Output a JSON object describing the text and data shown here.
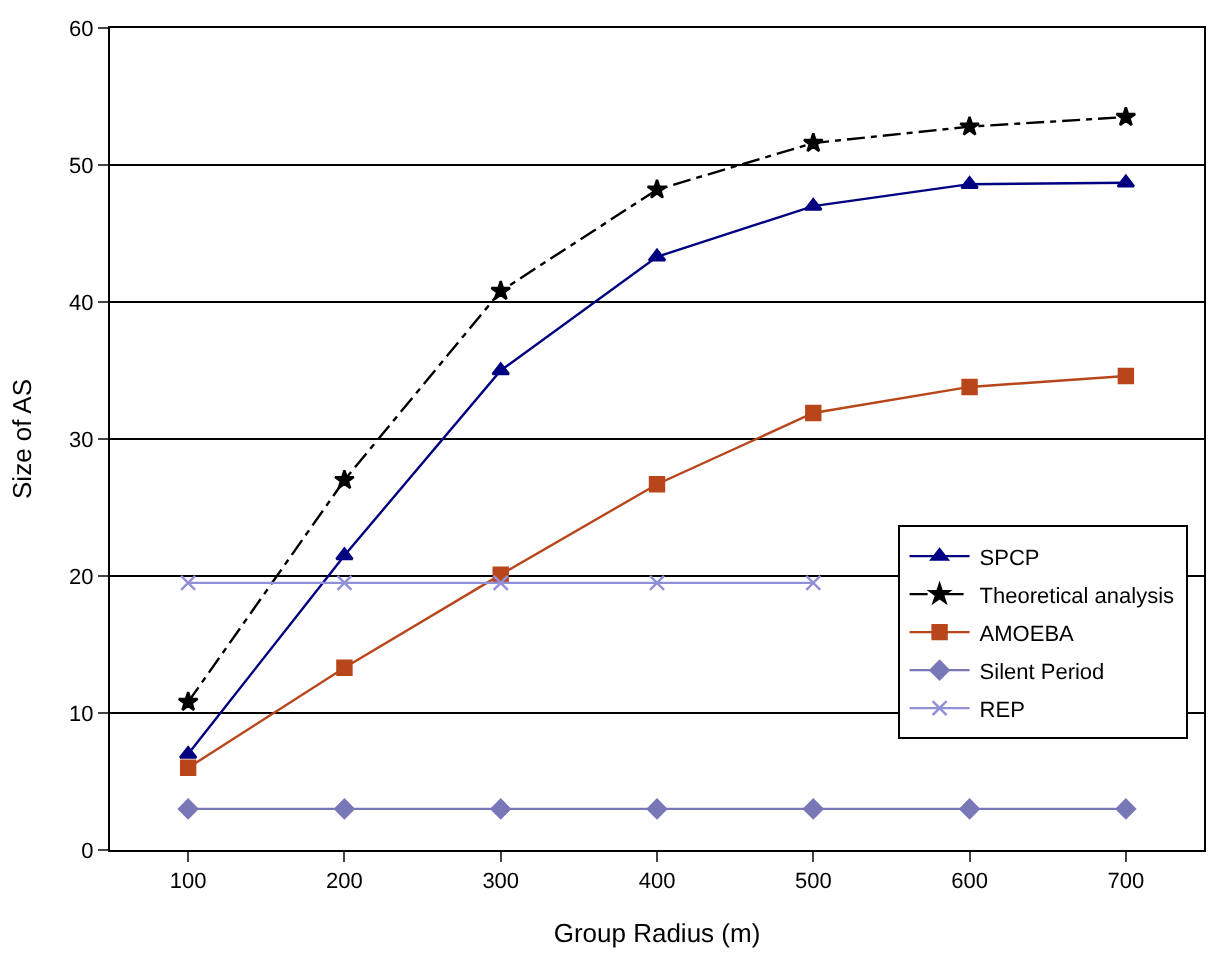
{
  "chart_data": {
    "type": "line",
    "xlabel": "Group Radius (m)",
    "ylabel": "Size of AS",
    "categories": [
      "100",
      "200",
      "300",
      "400",
      "500",
      "600",
      "700"
    ],
    "ylim": [
      0,
      60
    ],
    "yticks": [
      0,
      10,
      20,
      30,
      40,
      50,
      60
    ],
    "grid": "y",
    "legend": "right",
    "series": [
      {
        "name": "SPCP",
        "color": "#000080",
        "marker": "triangle",
        "line_style": "solid",
        "values": [
          7,
          21.5,
          35,
          43.3,
          47,
          48.6,
          48.7
        ]
      },
      {
        "name": "Theoretical analysis",
        "color": "#000000",
        "marker": "star",
        "line_style": "dashdot",
        "values": [
          10.8,
          27,
          40.8,
          48.2,
          51.6,
          52.8,
          53.5
        ]
      },
      {
        "name": "AMOEBA",
        "color": "#b8461a",
        "marker": "square",
        "line_style": "solid",
        "values": [
          6,
          13.3,
          20.1,
          26.7,
          31.9,
          33.8,
          34.6
        ]
      },
      {
        "name": "Silent Period",
        "color": "#7878b8",
        "marker": "diamond",
        "line_style": "solid",
        "values": [
          3,
          3,
          3,
          3,
          3,
          3,
          3
        ]
      },
      {
        "name": "REP",
        "color": "#9090d8",
        "marker": "cross",
        "line_style": "solid",
        "values": [
          19.5,
          19.5,
          19.5,
          19.5,
          19.5,
          null,
          null
        ]
      }
    ]
  }
}
